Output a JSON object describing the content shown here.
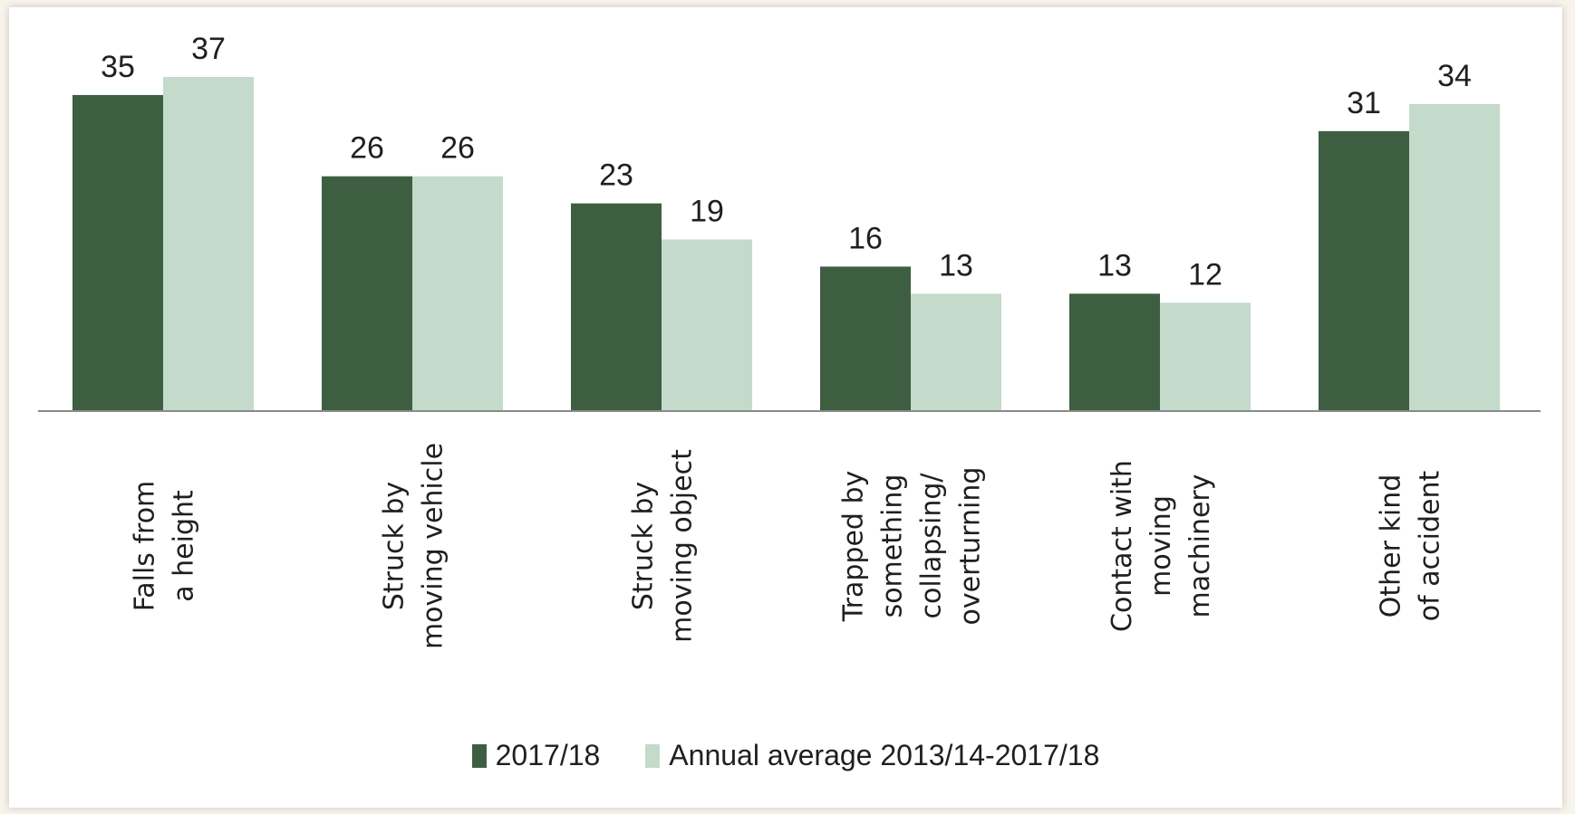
{
  "chart_data": {
    "type": "bar",
    "categories": [
      "Falls from a height",
      "Struck by moving vehicle",
      "Struck by moving object",
      "Trapped by something collapsing/ overturning",
      "Contact with moving machinery",
      "Other kind of accident"
    ],
    "category_lines": [
      [
        "Falls from",
        "a height"
      ],
      [
        "Struck by",
        "moving vehicle"
      ],
      [
        "Struck by",
        "moving object"
      ],
      [
        "Trapped by",
        "something",
        "collapsing/",
        "overturning"
      ],
      [
        "Contact with",
        "moving",
        "machinery"
      ],
      [
        "Other kind",
        "of accident"
      ]
    ],
    "series": [
      {
        "name": "2017/18",
        "values": [
          35,
          26,
          23,
          16,
          13,
          31
        ],
        "color": "#3e5e42"
      },
      {
        "name": "Annual average 2013/14-2017/18",
        "values": [
          37,
          26,
          19,
          13,
          12,
          34
        ],
        "color": "#c4dacb"
      }
    ],
    "ylim": [
      0,
      37
    ],
    "grid": false,
    "legend_position": "bottom-center",
    "title": "",
    "xlabel": "",
    "ylabel": ""
  }
}
